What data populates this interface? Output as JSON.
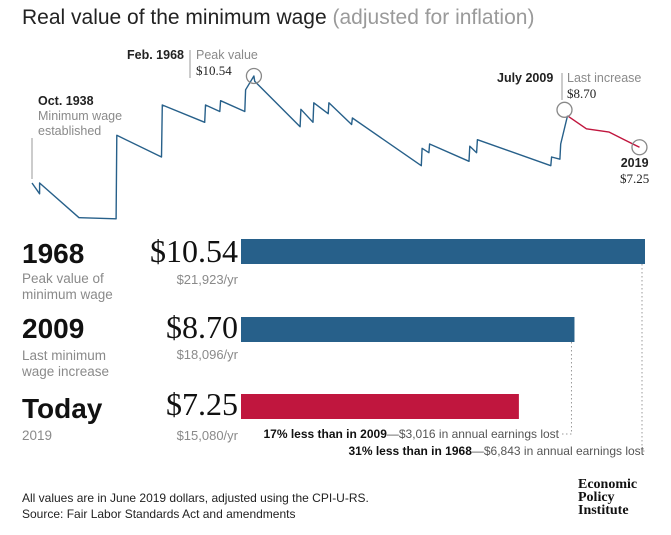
{
  "title": {
    "main": "Real value of the minimum wage",
    "sub": "(adjusted for inflation)"
  },
  "annotations": {
    "oct1938": {
      "date": "Oct. 1938",
      "l1": "Minimum wage",
      "l2": "established"
    },
    "feb1968": {
      "date": "Feb. 1968",
      "label": "Peak value",
      "value": "$10.54"
    },
    "jul2009": {
      "date": "July 2009",
      "label": "Last increase",
      "value": "$8.70"
    },
    "y2019": {
      "date": "2019",
      "value": "$7.25"
    }
  },
  "rows": [
    {
      "year": "1968",
      "desc1": "Peak value of",
      "desc2": "minimum wage",
      "wage": "$10.54",
      "annual": "$21,923/yr",
      "value": 10.54
    },
    {
      "year": "2009",
      "desc1": "Last minimum",
      "desc2": "wage increase",
      "wage": "$8.70",
      "annual": "$18,096/yr",
      "value": 8.7
    },
    {
      "year": "Today",
      "desc1": "2019",
      "desc2": "",
      "wage": "$7.25",
      "annual": "$15,080/yr",
      "value": 7.25
    }
  ],
  "comparisons": [
    {
      "bold": "17% less than in 2009",
      "rest": "—$3,016 in annual earnings lost"
    },
    {
      "bold": "31% less than in 1968",
      "rest": "—$6,843 in annual earnings lost"
    }
  ],
  "footer": {
    "line1": "All values are in June 2019 dollars, adjusted using the CPI-U-RS.",
    "line2": "Source: Fair Labor Standards Act and amendments"
  },
  "logo": {
    "l1": "Economic",
    "l2": "Policy",
    "l3": "Institute"
  },
  "colors": {
    "blue": "#27608a",
    "red": "#c0163e",
    "gray": "#9a9a9a"
  },
  "chart_data": [
    {
      "type": "line",
      "xlim": [
        1938.8,
        2019.6
      ],
      "ylim": [
        3.8,
        11.0
      ],
      "series": [
        {
          "color": "#27608a",
          "x": [
            1938.8,
            1939.8,
            1939.8,
            1945,
            1945.1,
            1949.9,
            1950.0,
            1955.9,
            1956.0,
            1961.6,
            1961.7,
            1963.6,
            1963.7,
            1966.9,
            1967.0,
            1968.1,
            1968.2,
            1974.2,
            1974.3,
            1975.9,
            1976.0,
            1977.9,
            1978.0,
            1981.0,
            1981.1,
            1990.2,
            1990.3,
            1991.2,
            1991.3,
            1996.5,
            1996.6,
            1997.5,
            1997.6,
            2007.3,
            2007.4,
            2008.5,
            2008.6,
            2009.5
          ],
          "y": [
            5.6,
            5.1,
            5.6,
            4.0,
            4.0,
            3.95,
            7.8,
            6.8,
            9.2,
            8.4,
            9.2,
            8.9,
            9.4,
            8.9,
            9.9,
            10.54,
            10.3,
            8.2,
            9.0,
            8.4,
            9.3,
            8.8,
            9.3,
            8.3,
            8.6,
            6.4,
            7.2,
            7.0,
            7.4,
            6.6,
            7.3,
            7.0,
            7.6,
            6.4,
            6.8,
            6.7,
            7.4,
            8.7
          ]
        },
        {
          "color": "#c0163e",
          "x": [
            2009.5,
            2012,
            2015,
            2017,
            2019
          ],
          "y": [
            8.7,
            8.1,
            7.95,
            7.6,
            7.25
          ]
        }
      ]
    },
    {
      "type": "bar",
      "categories": [
        "1968",
        "2009",
        "Today"
      ],
      "values": [
        10.54,
        8.7,
        7.25
      ],
      "colors": [
        "#27608a",
        "#27608a",
        "#c0163e"
      ]
    }
  ]
}
